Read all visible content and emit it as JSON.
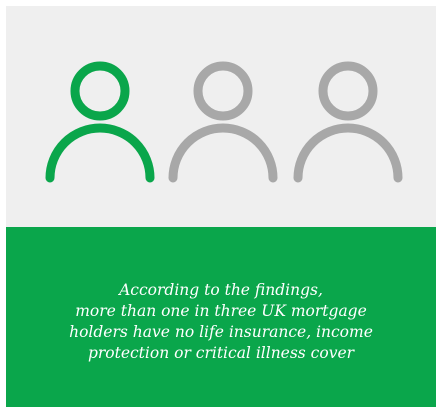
{
  "infographic": {
    "people_icons": [
      {
        "icon": "person-icon",
        "highlighted": true,
        "color": "#0aa64b"
      },
      {
        "icon": "person-icon",
        "highlighted": false,
        "color": "#a8a8a8"
      },
      {
        "icon": "person-icon",
        "highlighted": false,
        "color": "#a8a8a8"
      }
    ],
    "panel_background": "#efefef",
    "text_background": "#0aa64b",
    "caption_lines": [
      "According to the findings,",
      "more than one in three UK mortgage",
      "holders have no life insurance, income",
      "protection or critical illness cover"
    ]
  }
}
